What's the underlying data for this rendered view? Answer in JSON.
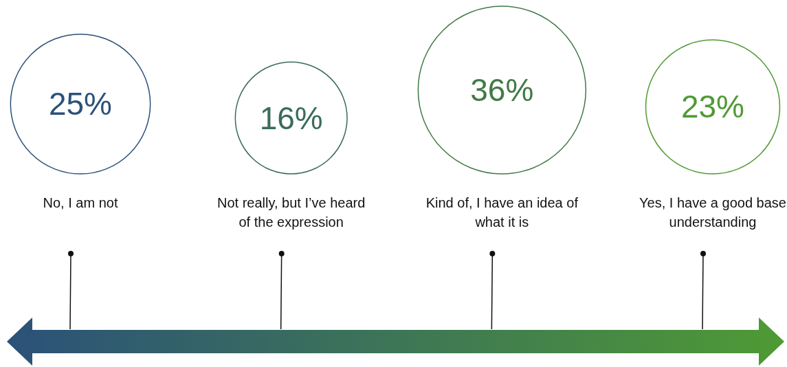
{
  "chart_data": {
    "type": "other",
    "categories": [
      "No, I am not",
      "Not really, but I’ve heard of the expression",
      "Kind of, I have an idea of what it is",
      "Yes, I have a good base understanding"
    ],
    "values": [
      25,
      16,
      36,
      23
    ],
    "colors": [
      "#2b5179",
      "#3a6b5c",
      "#427a46",
      "#4f9a34"
    ],
    "value_labels": [
      "25%",
      "16%",
      "36%",
      "23%"
    ]
  }
}
